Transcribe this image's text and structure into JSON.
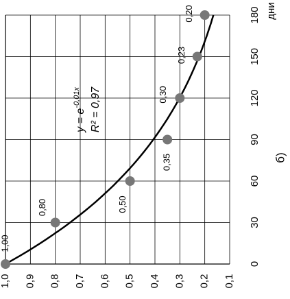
{
  "chart_data": {
    "type": "scatter",
    "x_label": "дни",
    "caption": "б)",
    "x": [
      0,
      30,
      60,
      90,
      120,
      150,
      180
    ],
    "values": [
      1.0,
      0.8,
      0.5,
      0.35,
      0.3,
      0.23,
      0.2
    ],
    "value_labels": [
      "1,00",
      "0,80",
      "0,50",
      "0,35",
      "0,30",
      "0,23",
      "0,20"
    ],
    "color": "#777777",
    "xlim": [
      0,
      180
    ],
    "xticks": [
      0,
      30,
      60,
      90,
      120,
      150,
      180
    ],
    "ylim": [
      1.0,
      0.1
    ],
    "yticks": [
      {
        "value": 1.0,
        "label": "1,0"
      },
      {
        "value": 0.9,
        "label": "0,9"
      },
      {
        "value": 0.8,
        "label": "0,8"
      },
      {
        "value": 0.7,
        "label": "0,7"
      },
      {
        "value": 0.6,
        "label": "0,6"
      },
      {
        "value": 0.5,
        "label": "0,5"
      },
      {
        "value": 0.4,
        "label": "0,4"
      },
      {
        "value": 0.3,
        "label": "0,3"
      },
      {
        "value": 0.2,
        "label": "0,2"
      },
      {
        "value": 0.1,
        "label": "0,1"
      }
    ],
    "grid": true,
    "trendline": {
      "equation": "y = e",
      "exponent": "-0,01x",
      "k": -0.01,
      "r2": "R² = 0,97"
    }
  }
}
